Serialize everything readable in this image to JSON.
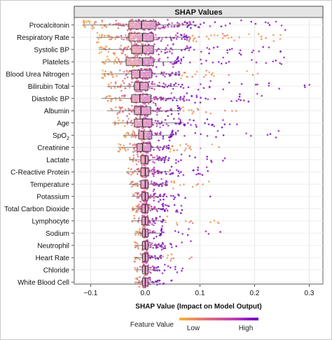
{
  "chart_data": {
    "type": "scatter",
    "subtype": "shap-beeswarm-with-boxplots",
    "title": "SHAP Values",
    "xlabel": "SHAP Value (Impact on Model Output)",
    "xlim": [
      -0.13,
      0.325
    ],
    "xticks": [
      -0.1,
      0.0,
      0.1,
      0.2,
      0.3
    ],
    "xtick_labels": [
      "−0.1",
      "0.0",
      "0.1",
      "0.2",
      "0.3"
    ],
    "grid": true,
    "legend": {
      "title": "Feature Value",
      "low": "Low",
      "high": "High",
      "placement": "bottom-center",
      "colors": [
        "#f7b23b",
        "#e0707a",
        "#c23bb6",
        "#6a00c8"
      ]
    },
    "features": [
      {
        "name": "Procalcitonin",
        "q1": -0.03,
        "median": -0.007,
        "q3": 0.02,
        "wlo": -0.115,
        "whi": 0.095,
        "min": -0.12,
        "max": 0.27
      },
      {
        "name": "Respiratory Rate",
        "q1": -0.03,
        "median": -0.005,
        "q3": 0.015,
        "wlo": -0.09,
        "whi": 0.08,
        "min": -0.095,
        "max": 0.26
      },
      {
        "name": "Systolic BP",
        "q1": -0.025,
        "median": -0.005,
        "q3": 0.015,
        "wlo": -0.085,
        "whi": 0.075,
        "min": -0.09,
        "max": 0.26
      },
      {
        "name": "Platelets",
        "q1": -0.035,
        "median": -0.005,
        "q3": 0.015,
        "wlo": -0.08,
        "whi": 0.06,
        "min": -0.085,
        "max": 0.26
      },
      {
        "name": "Blood Urea Nitrogen",
        "q1": -0.025,
        "median": -0.01,
        "q3": 0.012,
        "wlo": -0.08,
        "whi": 0.065,
        "min": -0.085,
        "max": 0.245
      },
      {
        "name": "Bilirubin Total",
        "q1": -0.02,
        "median": -0.01,
        "q3": 0.005,
        "wlo": -0.07,
        "whi": 0.06,
        "min": -0.075,
        "max": 0.31
      },
      {
        "name": "Diastolic BP",
        "q1": -0.025,
        "median": -0.01,
        "q3": 0.01,
        "wlo": -0.08,
        "whi": 0.07,
        "min": -0.085,
        "max": 0.22
      },
      {
        "name": "Albumin",
        "q1": -0.02,
        "median": -0.008,
        "q3": 0.01,
        "wlo": -0.07,
        "whi": 0.065,
        "min": -0.075,
        "max": 0.18
      },
      {
        "name": "Age",
        "q1": -0.02,
        "median": -0.005,
        "q3": 0.012,
        "wlo": -0.06,
        "whi": 0.07,
        "min": -0.065,
        "max": 0.175
      },
      {
        "name": "SpO₂",
        "q1": -0.012,
        "median": -0.003,
        "q3": 0.012,
        "wlo": -0.04,
        "whi": 0.05,
        "min": -0.065,
        "max": 0.25
      },
      {
        "name": "Creatinine",
        "q1": -0.015,
        "median": -0.005,
        "q3": 0.01,
        "wlo": -0.05,
        "whi": 0.045,
        "min": -0.06,
        "max": 0.16
      },
      {
        "name": "Lactate",
        "q1": -0.008,
        "median": 0.0,
        "q3": 0.005,
        "wlo": -0.03,
        "whi": 0.04,
        "min": -0.045,
        "max": 0.15
      },
      {
        "name": "C-Reactive Protein",
        "q1": -0.008,
        "median": 0.0,
        "q3": 0.006,
        "wlo": -0.035,
        "whi": 0.045,
        "min": -0.065,
        "max": 0.12
      },
      {
        "name": "Temperature",
        "q1": -0.008,
        "median": 0.0,
        "q3": 0.005,
        "wlo": -0.03,
        "whi": 0.04,
        "min": -0.045,
        "max": 0.12
      },
      {
        "name": "Potassium",
        "q1": -0.006,
        "median": 0.0,
        "q3": 0.005,
        "wlo": -0.025,
        "whi": 0.035,
        "min": -0.035,
        "max": 0.13
      },
      {
        "name": "Total Carbon Dioxide",
        "q1": -0.006,
        "median": 0.0,
        "q3": 0.005,
        "wlo": -0.025,
        "whi": 0.035,
        "min": -0.035,
        "max": 0.08
      },
      {
        "name": "Lymphocyte",
        "q1": -0.006,
        "median": 0.0,
        "q3": 0.005,
        "wlo": -0.025,
        "whi": 0.035,
        "min": -0.04,
        "max": 0.14
      },
      {
        "name": "Sodium",
        "q1": -0.005,
        "median": 0.0,
        "q3": 0.005,
        "wlo": -0.02,
        "whi": 0.03,
        "min": -0.035,
        "max": 0.15
      },
      {
        "name": "Neutrophil",
        "q1": -0.005,
        "median": 0.0,
        "q3": 0.005,
        "wlo": -0.02,
        "whi": 0.03,
        "min": -0.03,
        "max": 0.085
      },
      {
        "name": "Heart Rate",
        "q1": -0.005,
        "median": 0.0,
        "q3": 0.005,
        "wlo": -0.02,
        "whi": 0.03,
        "min": -0.035,
        "max": 0.1
      },
      {
        "name": "Chloride",
        "q1": -0.005,
        "median": 0.0,
        "q3": 0.005,
        "wlo": -0.02,
        "whi": 0.025,
        "min": -0.03,
        "max": 0.07
      },
      {
        "name": "White Blood Cell",
        "q1": -0.005,
        "median": 0.0,
        "q3": 0.005,
        "wlo": -0.02,
        "whi": 0.025,
        "min": -0.03,
        "max": 0.065
      }
    ]
  }
}
